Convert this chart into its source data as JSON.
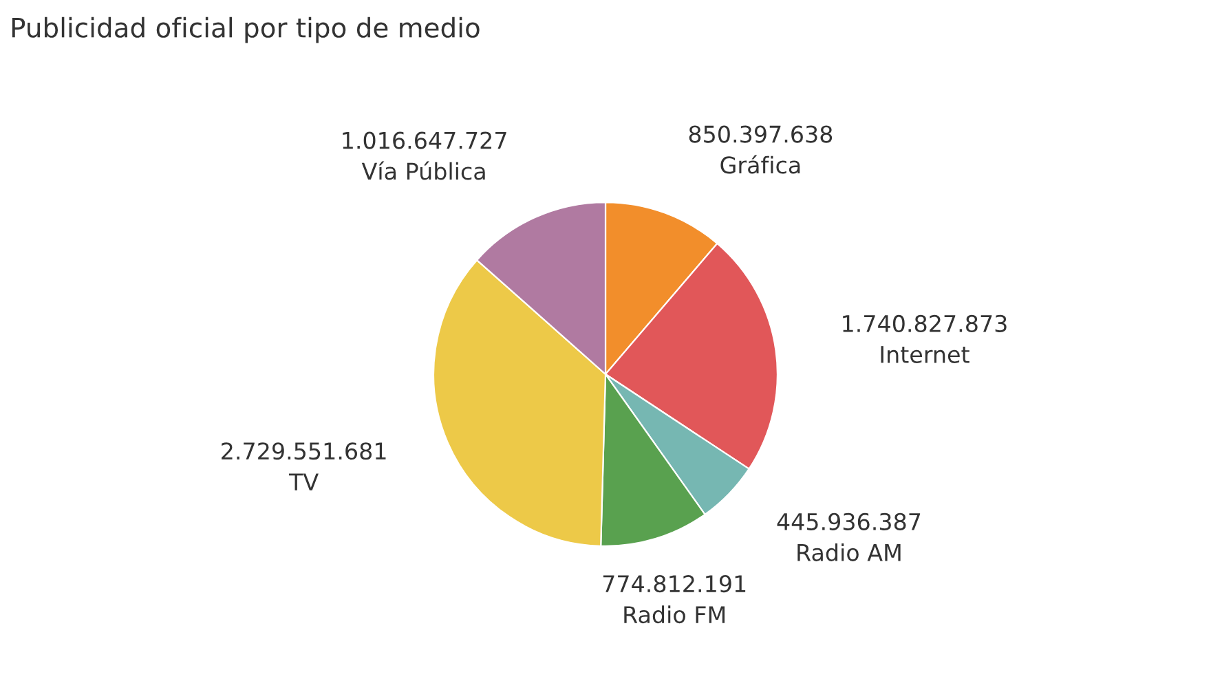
{
  "chart_data": {
    "type": "pie",
    "title": "Publicidad oficial por tipo de medio",
    "categories": [
      "Gráfica",
      "Internet",
      "Radio AM",
      "Radio FM",
      "TV",
      "Vía Pública"
    ],
    "values": [
      850397638,
      1740827873,
      445936387,
      774812191,
      2729551681,
      1016647727
    ],
    "value_labels": [
      "850.397.638",
      "1.740.827.873",
      "445.936.387",
      "774.812.191",
      "2.729.551.681",
      "1.016.647.727"
    ],
    "colors": [
      "#f28e2b",
      "#e15759",
      "#76b7b2",
      "#59a14f",
      "#edc948",
      "#b07aa1"
    ],
    "legend": false
  }
}
